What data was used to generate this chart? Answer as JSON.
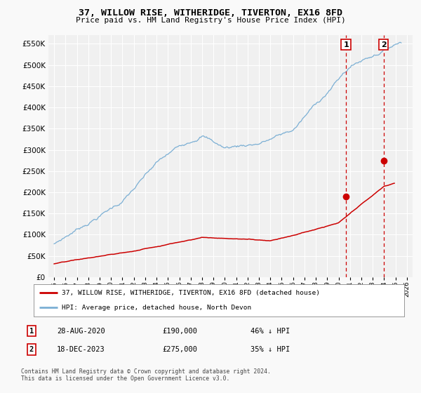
{
  "title": "37, WILLOW RISE, WITHERIDGE, TIVERTON, EX16 8FD",
  "subtitle": "Price paid vs. HM Land Registry's House Price Index (HPI)",
  "ylim": [
    0,
    570000
  ],
  "yticks": [
    0,
    50000,
    100000,
    150000,
    200000,
    250000,
    300000,
    350000,
    400000,
    450000,
    500000,
    550000
  ],
  "x_start_year": 1995,
  "x_end_year": 2026,
  "legend_line1": "37, WILLOW RISE, WITHERIDGE, TIVERTON, EX16 8FD (detached house)",
  "legend_line2": "HPI: Average price, detached house, North Devon",
  "marker1_date": "28-AUG-2020",
  "marker1_price": 190000,
  "marker1_hpi": "46% ↓ HPI",
  "marker1_x": 2020.65,
  "marker2_date": "18-DEC-2023",
  "marker2_price": 275000,
  "marker2_hpi": "35% ↓ HPI",
  "marker2_x": 2023.96,
  "footnote1": "Contains HM Land Registry data © Crown copyright and database right 2024.",
  "footnote2": "This data is licensed under the Open Government Licence v3.0.",
  "hpi_color": "#7bafd4",
  "price_color": "#cc0000",
  "marker_color": "#cc0000",
  "vline_color": "#cc0000",
  "background_color": "#f0f0f0",
  "grid_color": "#ffffff",
  "fig_bg": "#f9f9f9"
}
